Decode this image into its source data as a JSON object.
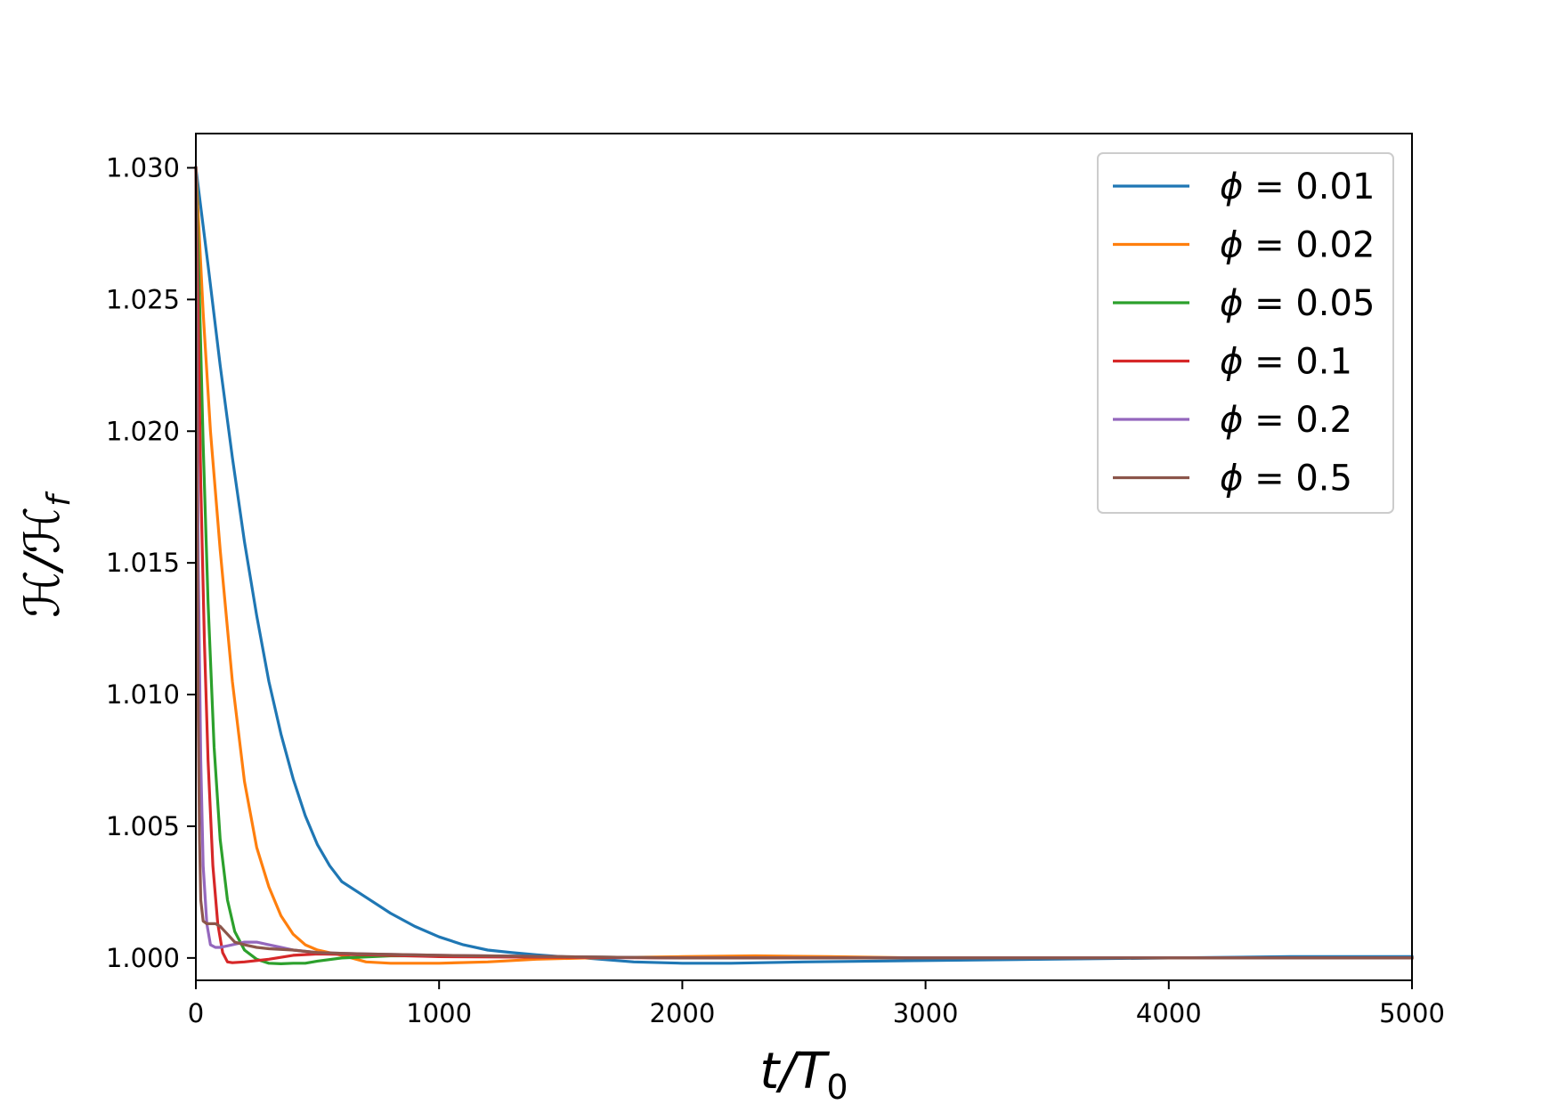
{
  "chart_data": {
    "type": "line",
    "xlabel": {
      "main": "t/T",
      "sub": "0"
    },
    "ylabel": {
      "main": "ℋ/ℋ",
      "sub": "f"
    },
    "xlim": [
      0,
      5000
    ],
    "ylim": [
      0.99915,
      1.0313
    ],
    "xticks": [
      "0",
      "1000",
      "2000",
      "3000",
      "4000",
      "5000"
    ],
    "xtick_values": [
      0,
      1000,
      2000,
      3000,
      4000,
      5000
    ],
    "yticks": [
      "1.000",
      "1.005",
      "1.010",
      "1.015",
      "1.020",
      "1.025",
      "1.030"
    ],
    "ytick_values": [
      1.0,
      1.005,
      1.01,
      1.015,
      1.02,
      1.025,
      1.03
    ],
    "grid": false,
    "legend_position": "top-right",
    "series": [
      {
        "name": "ϕ = 0.01",
        "symbol": "ϕ",
        "value_text": "= 0.01",
        "color": "#1f77b4",
        "x": [
          0,
          50,
          100,
          150,
          200,
          250,
          300,
          350,
          400,
          450,
          500,
          550,
          600,
          700,
          800,
          900,
          1000,
          1100,
          1200,
          1300,
          1400,
          1500,
          1600,
          1800,
          2000,
          2200,
          2500,
          3000,
          3500,
          4000,
          4500,
          5000
        ],
        "y": [
          1.03,
          1.0263,
          1.0225,
          1.019,
          1.0158,
          1.013,
          1.0105,
          1.0085,
          1.0068,
          1.0054,
          1.0043,
          1.0035,
          1.0029,
          1.0023,
          1.0017,
          1.0012,
          1.0008,
          1.0005,
          1.0003,
          1.0002,
          1.00012,
          1.00005,
          1.0,
          0.99985,
          0.9998,
          0.9998,
          0.99985,
          0.9999,
          0.99995,
          1.0,
          1.00005,
          1.00005
        ]
      },
      {
        "name": "ϕ = 0.02",
        "symbol": "ϕ",
        "value_text": "= 0.02",
        "color": "#ff7f0e",
        "x": [
          0,
          30,
          60,
          100,
          150,
          200,
          250,
          300,
          350,
          400,
          450,
          500,
          600,
          700,
          800,
          900,
          1000,
          1200,
          1400,
          1600,
          2000,
          2300,
          2600,
          3000,
          4000,
          5000
        ],
        "y": [
          1.03,
          1.0245,
          1.02,
          1.0155,
          1.0105,
          1.0067,
          1.0042,
          1.0027,
          1.0016,
          1.0009,
          1.0005,
          1.0003,
          1.0001,
          0.99985,
          0.9998,
          0.9998,
          0.9998,
          0.99985,
          0.99995,
          1.0,
          1.00005,
          1.00008,
          1.00005,
          1.0,
          1.0,
          1.0
        ]
      },
      {
        "name": "ϕ = 0.05",
        "symbol": "ϕ",
        "value_text": "= 0.05",
        "color": "#2ca02c",
        "x": [
          0,
          15,
          30,
          50,
          75,
          100,
          130,
          160,
          200,
          250,
          300,
          350,
          400,
          450,
          500,
          600,
          800,
          1000,
          1500,
          2000,
          3000,
          5000
        ],
        "y": [
          1.03,
          1.025,
          1.0195,
          1.0135,
          1.008,
          1.0045,
          1.0022,
          1.001,
          1.0003,
          0.99995,
          0.9998,
          0.99978,
          0.9998,
          0.9998,
          0.99988,
          1.0,
          1.00008,
          1.00008,
          1.00005,
          1.0,
          1.0,
          1.0
        ]
      },
      {
        "name": "ϕ = 0.1",
        "symbol": "ϕ",
        "value_text": "= 0.1",
        "color": "#d62728",
        "x": [
          0,
          10,
          20,
          35,
          50,
          70,
          90,
          110,
          130,
          150,
          200,
          300,
          400,
          500,
          700,
          1000,
          2000,
          5000
        ],
        "y": [
          1.03,
          1.024,
          1.018,
          1.012,
          1.0075,
          1.0035,
          1.0013,
          1.0002,
          0.99985,
          0.99982,
          0.99985,
          0.99995,
          1.0001,
          1.00015,
          1.00012,
          1.00005,
          1.0,
          1.0
        ]
      },
      {
        "name": "ϕ = 0.2",
        "symbol": "ϕ",
        "value_text": "= 0.2",
        "color": "#9467bd",
        "x": [
          0,
          5,
          10,
          20,
          30,
          45,
          60,
          80,
          100,
          150,
          200,
          250,
          300,
          350,
          400,
          500,
          700,
          1000,
          1500,
          2000,
          5000
        ],
        "y": [
          1.03,
          1.022,
          1.015,
          1.0075,
          1.0035,
          1.0013,
          1.0005,
          1.0004,
          1.0004,
          1.0005,
          1.0006,
          1.0006,
          1.0005,
          1.0004,
          1.0003,
          1.0002,
          1.00015,
          1.0001,
          1.00005,
          1.0,
          1.0
        ]
      },
      {
        "name": "ϕ = 0.5",
        "symbol": "ϕ",
        "value_text": "= 0.5",
        "color": "#8c564b",
        "x": [
          0,
          3,
          6,
          10,
          15,
          20,
          30,
          45,
          60,
          80,
          100,
          130,
          160,
          200,
          250,
          300,
          400,
          500,
          700,
          1000,
          1500,
          2000,
          3000,
          5000
        ],
        "y": [
          1.03,
          1.023,
          1.016,
          1.009,
          1.0045,
          1.0022,
          1.0014,
          1.0013,
          1.0013,
          1.0013,
          1.0012,
          1.0009,
          1.0006,
          1.0005,
          1.0004,
          1.00035,
          1.0003,
          1.0002,
          1.00015,
          1.0001,
          1.00005,
          1.0,
          1.0,
          1.0
        ]
      }
    ]
  }
}
